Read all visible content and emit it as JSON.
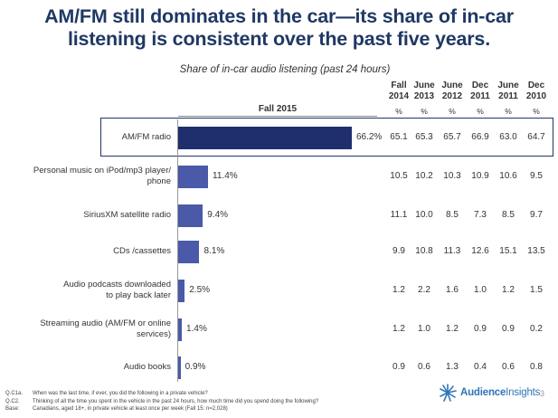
{
  "title_line1": "AM/FM still dominates in the car—its share of in-car",
  "title_line2": "listening is consistent over the past five years.",
  "colors": {
    "title": "#1f3864",
    "bar": "#4a5aa8",
    "bar_highlight": "#1f2f6e",
    "logo": "#2e75b6"
  },
  "chart_data": {
    "type": "bar",
    "orientation": "horizontal",
    "title": "Share of in-car audio listening (past 24 hours)",
    "series_label": "Fall 2015",
    "value_suffix": "%",
    "categories": [
      [
        "AM/FM radio"
      ],
      [
        "Personal music on iPod/mp3 player/",
        "phone"
      ],
      [
        "SiriusXM satellite radio"
      ],
      [
        "CDs /cassettes"
      ],
      [
        "Audio podcasts downloaded",
        "to play back later"
      ],
      [
        "Streaming audio (AM/FM or online",
        "services)"
      ],
      [
        "Audio books"
      ]
    ],
    "values": [
      66.2,
      11.4,
      9.4,
      8.1,
      2.5,
      1.4,
      0.9
    ],
    "value_labels": [
      "66.2%",
      "11.4%",
      "9.4%",
      "8.1%",
      "2.5%",
      "1.4%",
      "0.9%"
    ],
    "xlim": [
      0,
      100
    ],
    "table_columns": [
      {
        "line1": "Fall",
        "line2": "2014",
        "unit": "%"
      },
      {
        "line1": "June",
        "line2": "2013",
        "unit": "%"
      },
      {
        "line1": "June",
        "line2": "2012",
        "unit": "%"
      },
      {
        "line1": "Dec",
        "line2": "2011",
        "unit": "%"
      },
      {
        "line1": "June",
        "line2": "2011",
        "unit": "%"
      },
      {
        "line1": "Dec",
        "line2": "2010",
        "unit": "%"
      }
    ],
    "table_values": [
      [
        "65.1",
        "65.3",
        "65.7",
        "66.9",
        "63.0",
        "64.7"
      ],
      [
        "10.5",
        "10.2",
        "10.3",
        "10.9",
        "10.6",
        "9.5"
      ],
      [
        "11.1",
        "10.0",
        "8.5",
        "7.3",
        "8.5",
        "9.7"
      ],
      [
        "9.9",
        "10.8",
        "11.3",
        "12.6",
        "15.1",
        "13.5"
      ],
      [
        "1.2",
        "2.2",
        "1.6",
        "1.0",
        "1.2",
        "1.5"
      ],
      [
        "1.2",
        "1.0",
        "1.2",
        "0.9",
        "0.9",
        "0.2"
      ],
      [
        "0.9",
        "0.6",
        "1.3",
        "0.4",
        "0.6",
        "0.8"
      ]
    ]
  },
  "footnotes": [
    {
      "key": "Q.C1a.",
      "text": "When was the last time, if ever, you did the following in a private vehicle?"
    },
    {
      "key": "Q.C2.",
      "text": "Thinking of all the time you spent in the vehicle in the past 24 hours, how much time did you spend doing the following?"
    },
    {
      "key": "Base:",
      "text": "Canadians, aged 18+, in private vehicle at least once per week (Fall 15: n=2,028)"
    }
  ],
  "logo": {
    "part1": "Audience",
    "part2": "Insights"
  },
  "page_number": "3"
}
